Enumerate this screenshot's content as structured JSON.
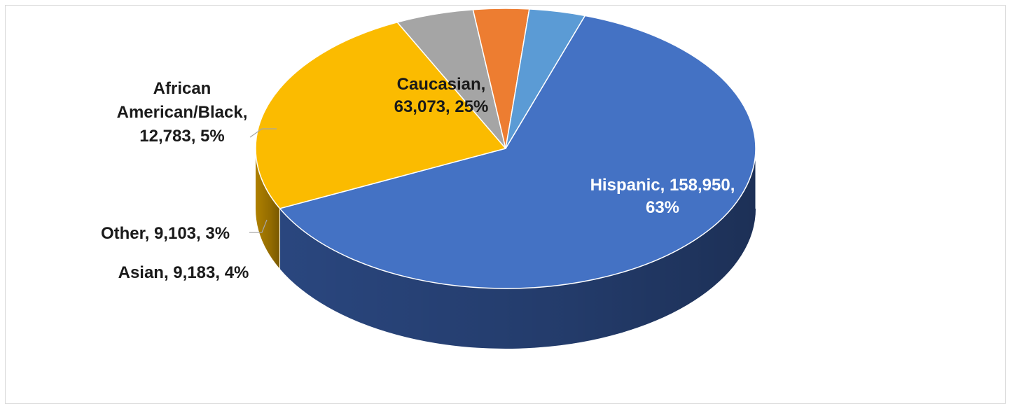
{
  "chart_data": {
    "type": "pie",
    "title": "",
    "slices": [
      {
        "name": "Hispanic",
        "value": 158950,
        "value_label": "158,950",
        "percent": "63%",
        "color": "#4472c4",
        "side_color": "#2c4a85"
      },
      {
        "name": "Caucasian",
        "value": 63073,
        "value_label": "63,073",
        "percent": "25%",
        "color": "#fbbb00",
        "side_color": "#b88700"
      },
      {
        "name": "African American/Black",
        "value": 12783,
        "value_label": "12,783",
        "percent": "5%",
        "color": "#a5a5a5",
        "side_color": "#6e6e6e"
      },
      {
        "name": "Other",
        "value": 9103,
        "value_label": "9,103",
        "percent": "3%",
        "color": "#ed7d31",
        "side_color": "#a8561f"
      },
      {
        "name": "Asian",
        "value": 9183,
        "value_label": "9,183",
        "percent": "4%",
        "color": "#5b9bd5",
        "side_color": "#3a6fa3"
      }
    ],
    "labels": [
      {
        "slice": "Hispanic",
        "lines": [
          "Hispanic, 158,950,",
          "63%"
        ],
        "color": "#ffffff"
      },
      {
        "slice": "Caucasian",
        "lines": [
          "Caucasian,",
          "63,073, 25%"
        ],
        "color": "#1a1a1a"
      },
      {
        "slice": "African American/Black",
        "lines": [
          "African",
          "American/Black,",
          "12,783, 5%"
        ],
        "color": "#1a1a1a"
      },
      {
        "slice": "Other",
        "lines": [
          "Other, 9,103, 3%"
        ],
        "color": "#1a1a1a"
      },
      {
        "slice": "Asian",
        "lines": [
          "Asian, 9,183, 4%"
        ],
        "color": "#1a1a1a"
      }
    ],
    "style": "3d-pie",
    "legend": "none"
  }
}
